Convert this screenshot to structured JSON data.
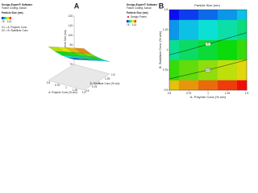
{
  "chart_data": [
    {
      "type": "surface",
      "panel": "A",
      "software": "Design-Expert® Software",
      "coding": "Factor Coding: Actual",
      "response": "Particle Size (nm)",
      "legend_min": 75,
      "legend_max": 113,
      "factors": [
        "X1 = A: Polymer Conc",
        "X2 = B: Stabilizer Conc"
      ],
      "xlabel": "A: Polymer Conc (% w/v)",
      "ylabel": "B: Stabilizer Conc (% w/v)",
      "zlabel": "Particle Size (nm)",
      "x": [
        0.5,
        0.75,
        1,
        1.25,
        1.5
      ],
      "y": [
        0.5,
        0.75,
        1,
        1.25,
        1.5
      ],
      "z": [
        [
          105,
          107,
          109,
          111,
          113
        ],
        [
          96,
          98,
          100,
          102,
          104
        ],
        [
          88,
          90,
          92,
          94,
          96
        ],
        [
          81,
          83,
          85,
          87,
          89
        ],
        [
          75,
          77,
          79,
          81,
          83
        ]
      ],
      "zlim": [
        70,
        120
      ],
      "zticks": [
        70,
        80,
        90,
        100,
        110,
        120
      ]
    },
    {
      "type": "contour",
      "panel": "B",
      "title": "Particle Size (nm)",
      "software": "Design-Expert® Software",
      "coding": "Factor Coding: Actual",
      "response": "Particle Size (nm)",
      "points_label": "Design Points",
      "legend_min": 75,
      "legend_max": 113,
      "xlabel": "A: Polymer Conc (% w/v)",
      "ylabel": "B: Stabilizer Conc (% w/v)",
      "x": [
        0.5,
        0.75,
        1,
        1.25,
        1.5
      ],
      "y": [
        0.5,
        0.75,
        1,
        1.25,
        1.5
      ],
      "z": [
        [
          105,
          107,
          109,
          111,
          113
        ],
        [
          96,
          98,
          100,
          102,
          104
        ],
        [
          88,
          90,
          92,
          94,
          96
        ],
        [
          81,
          83,
          85,
          87,
          89
        ],
        [
          75,
          77,
          79,
          81,
          83
        ]
      ],
      "xlim": [
        0.5,
        1.5
      ],
      "ylim": [
        0.5,
        1.5
      ],
      "xticks": [
        0.5,
        0.75,
        1,
        1.25,
        1.5
      ],
      "yticks": [
        0.5,
        0.75,
        1,
        1.25,
        1.5
      ],
      "levels": [
        90,
        100
      ]
    }
  ]
}
